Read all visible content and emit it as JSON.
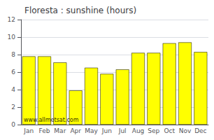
{
  "chart_data": {
    "type": "bar",
    "title": "Floresta : sunshine (hours)",
    "categories": [
      "Jan",
      "Feb",
      "Mar",
      "Apr",
      "May",
      "Jun",
      "Jul",
      "Aug",
      "Sep",
      "Oct",
      "Nov",
      "Dec"
    ],
    "values": [
      7.8,
      7.8,
      7.1,
      3.9,
      6.5,
      5.8,
      6.3,
      8.2,
      8.2,
      9.3,
      9.4,
      8.3
    ],
    "color": "#FFFF00",
    "ylim": [
      0,
      12
    ],
    "yticks": [
      0,
      2,
      4,
      6,
      8,
      10,
      12
    ],
    "grid": true,
    "annotation": "www.allmetsat.com"
  }
}
